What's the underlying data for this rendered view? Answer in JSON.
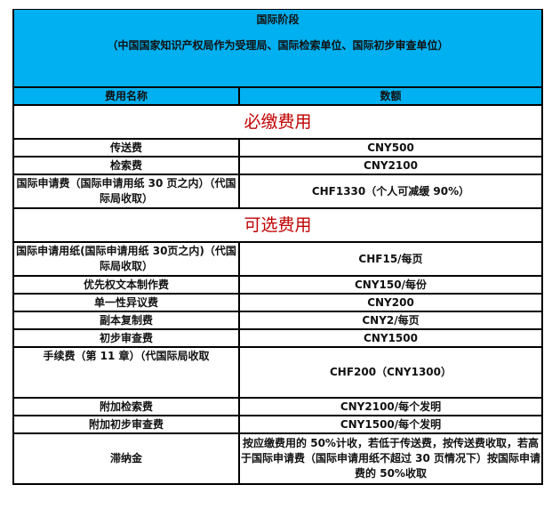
{
  "header": {
    "title": "国际阶段",
    "subtitle": "（中国国家知识产权局作为受理局、国际检索单位、国际初步审查单位）"
  },
  "columns": {
    "name": "费用名称",
    "amount": "数额"
  },
  "sections": [
    {
      "label": "必缴费用",
      "rows": [
        {
          "name": "传送费",
          "amount": "CNY500"
        },
        {
          "name": "检索费",
          "amount": "CNY2100"
        },
        {
          "name": "国际申请费（国际申请用纸 30 页之内）（代国际局收取）",
          "amount": "CHF1330（个人可减缓 90%）"
        }
      ]
    },
    {
      "label": "可选费用",
      "rows": [
        {
          "name": "国际申请用纸(国际申请用纸 30页之内)（代国际局收取）",
          "amount": "CHF15/每页"
        },
        {
          "name": "优先权文本制作费",
          "amount": "CNY150/每份"
        },
        {
          "name": "单一性异议费",
          "amount": "CNY200"
        },
        {
          "name": "副本复制费",
          "amount": "CNY2/每页"
        },
        {
          "name": "初步审查费",
          "amount": "CNY1500"
        },
        {
          "name": "手续费（第 11 章）（代国际局收取",
          "amount": "CHF200（CNY1300）"
        },
        {
          "name": "附加检索费",
          "amount": "CNY2100/每个发明"
        },
        {
          "name": "附加初步审查费",
          "amount": "CNY1500/每个发明"
        },
        {
          "name": "滞纳金",
          "amount": "按应缴费用的 50%计收，若低于传送费，按传送费收取，若高于国际申请费（国际申请用纸不超过 30 页情况下）按国际申请费的 50%收取"
        }
      ]
    }
  ],
  "colors": {
    "header_bg": "#00B0F0",
    "section_label": "#c00000"
  }
}
